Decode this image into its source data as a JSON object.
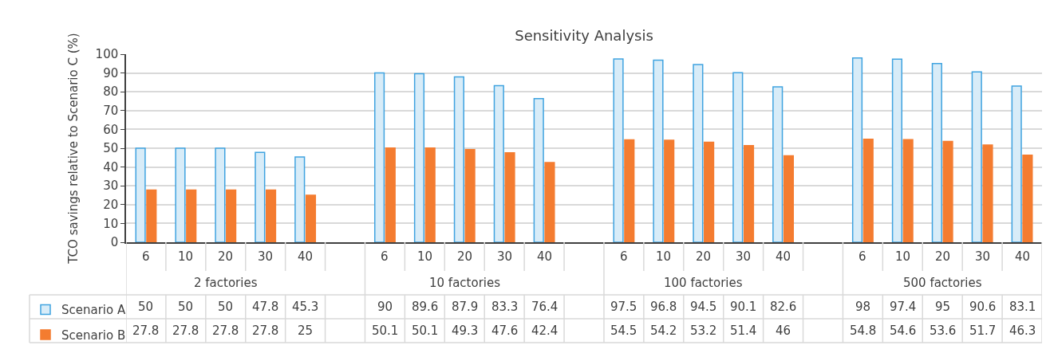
{
  "chart_data": {
    "type": "bar",
    "title": "Sensitivity Analysis",
    "ylabel": "TCO savings relative to Scenario C (%)",
    "categories": [
      "6",
      "10",
      "20",
      "30",
      "40",
      null,
      "6",
      "10",
      "20",
      "30",
      "40",
      null,
      "6",
      "10",
      "20",
      "30",
      "40",
      null,
      "6",
      "10",
      "20",
      "30",
      "40"
    ],
    "annotations": [
      "2 factories",
      "10 factories",
      "100 factories",
      "500 factories"
    ],
    "series": [
      {
        "name": "Scenario A",
        "color": "#3fa3e0",
        "values": [
          50,
          50,
          50,
          47.8,
          45.3,
          null,
          90,
          89.6,
          87.9,
          83.3,
          76.4,
          null,
          97.5,
          96.8,
          94.5,
          90.1,
          82.6,
          null,
          98,
          97.4,
          95,
          90.6,
          83.1
        ]
      },
      {
        "name": "Scenario B",
        "color": "#f47c30",
        "values": [
          27.8,
          27.8,
          27.8,
          27.8,
          25,
          null,
          50.1,
          50.1,
          49.3,
          47.6,
          42.4,
          null,
          54.5,
          54.2,
          53.2,
          51.4,
          46,
          null,
          54.8,
          54.6,
          53.6,
          51.7,
          46.3
        ]
      }
    ],
    "ylim": [
      0,
      100
    ],
    "yticks": [
      0,
      10,
      20,
      30,
      40,
      50,
      60,
      70,
      80,
      90,
      100
    ],
    "grid": "y",
    "legend": "bottom left",
    "data_labels": true
  }
}
